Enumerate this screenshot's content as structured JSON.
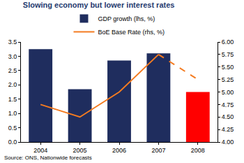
{
  "chart_data": {
    "type": "bar",
    "title": "Slowing economy but lower interest rates",
    "source": "Source: ONS, Nationwide forecasts",
    "categories": [
      "2004",
      "2005",
      "2006",
      "2007",
      "2008"
    ],
    "series": [
      {
        "name": "GDP growth (lhs, %)",
        "type": "bar",
        "color": "#1f2d5e",
        "colors": [
          "#1f2d5e",
          "#1f2d5e",
          "#1f2d5e",
          "#1f2d5e",
          "#ff0000"
        ],
        "values": [
          3.25,
          1.85,
          2.85,
          3.1,
          1.75
        ]
      },
      {
        "name": "BoE Base Rate (rhs, %)",
        "type": "line",
        "axis": "y2",
        "color": "#f47b20",
        "line_style": "solid",
        "values": [
          4.75,
          4.5,
          5.0,
          5.75,
          null
        ]
      },
      {
        "type": "line",
        "axis": "y2",
        "color": "#f47b20",
        "line_style": "dash",
        "values": [
          null,
          null,
          null,
          5.75,
          5.25
        ]
      }
    ],
    "ylim": [
      0,
      3.5
    ],
    "yticks": [
      {
        "value": 0,
        "label": "0.0"
      },
      0.5,
      {
        "value": 1,
        "label": "1.0"
      },
      1.5,
      {
        "value": 2,
        "label": "2.0"
      },
      2.5,
      {
        "value": 3,
        "label": "3.0"
      },
      3.5
    ],
    "y2lim": [
      4,
      6
    ],
    "y2ticks": [
      {
        "value": 4,
        "label": "4.00"
      },
      4.25,
      {
        "value": 4.5,
        "label": "4.50"
      },
      4.75,
      {
        "value": 5,
        "label": "5.00"
      },
      5.25,
      {
        "value": 5.5,
        "label": "5.50"
      },
      5.75,
      {
        "value": 6,
        "label": "6.00"
      }
    ],
    "grid": false,
    "legend": "top"
  }
}
